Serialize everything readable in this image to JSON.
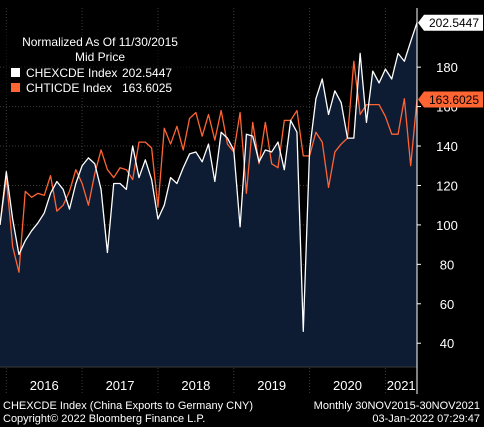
{
  "chart_data": {
    "type": "line",
    "legend": {
      "title_line1": "Normalized As Of 11/30/2015",
      "title_line2": "Mid Price",
      "placement": "top-left"
    },
    "x_labels": [
      "2016",
      "2017",
      "2018",
      "2019",
      "2020",
      "2021"
    ],
    "ylim": [
      32,
      210
    ],
    "y_ticks": [
      40,
      60,
      80,
      100,
      120,
      140,
      160,
      180
    ],
    "grid": true,
    "series": [
      {
        "name": "CHEXCDE Index",
        "legend_value": "202.5447",
        "last_label": "202.5447",
        "color": "#ffffff",
        "values": [
          100,
          127,
          103,
          85,
          92,
          97,
          101,
          106,
          116,
          122,
          118,
          108,
          121,
          130,
          134,
          131,
          118,
          86,
          121,
          121,
          118,
          140,
          124,
          133,
          123,
          103,
          110,
          124,
          121,
          129,
          136,
          137,
          132,
          141,
          122,
          147,
          144,
          138,
          99,
          146,
          145,
          132,
          138,
          137,
          142,
          128,
          153,
          147,
          46,
          138,
          164,
          174,
          156,
          168,
          162,
          144,
          144,
          187,
          152,
          178,
          172,
          179,
          174,
          187,
          183,
          193,
          202.5447
        ]
      },
      {
        "name": "CHTICDE Index",
        "legend_value": "163.6025",
        "last_label": "163.6025",
        "color": "#ff6433",
        "values": [
          100,
          124,
          89,
          76,
          117,
          114,
          116,
          115,
          125,
          107,
          110,
          117,
          128,
          121,
          110,
          126,
          138,
          128,
          124,
          129,
          128,
          123,
          142,
          142,
          139,
          109,
          149,
          141,
          150,
          138,
          154,
          157,
          145,
          156,
          143,
          158,
          141,
          137,
          157,
          116,
          152,
          131,
          152,
          131,
          129,
          153,
          153,
          158,
          135,
          135,
          147,
          142,
          119,
          137,
          141,
          144,
          183,
          156,
          161,
          161,
          161,
          155,
          146,
          146,
          164,
          130,
          163.6025
        ]
      }
    ]
  },
  "footer": {
    "line1_left": "CHEXCDE Index (China Exports to Germany CNY)",
    "line1_right": "Monthly 30NOV2015-30NOV2021",
    "line2_left": "Copyright© 2022 Bloomberg Finance L.P.",
    "line2_right": "03-Jan-2022 07:29:47"
  },
  "colors": {
    "background": "#000000",
    "plot_fill": "#0d1b33",
    "grid": "#3a3a3a",
    "text": "#ffffff"
  }
}
